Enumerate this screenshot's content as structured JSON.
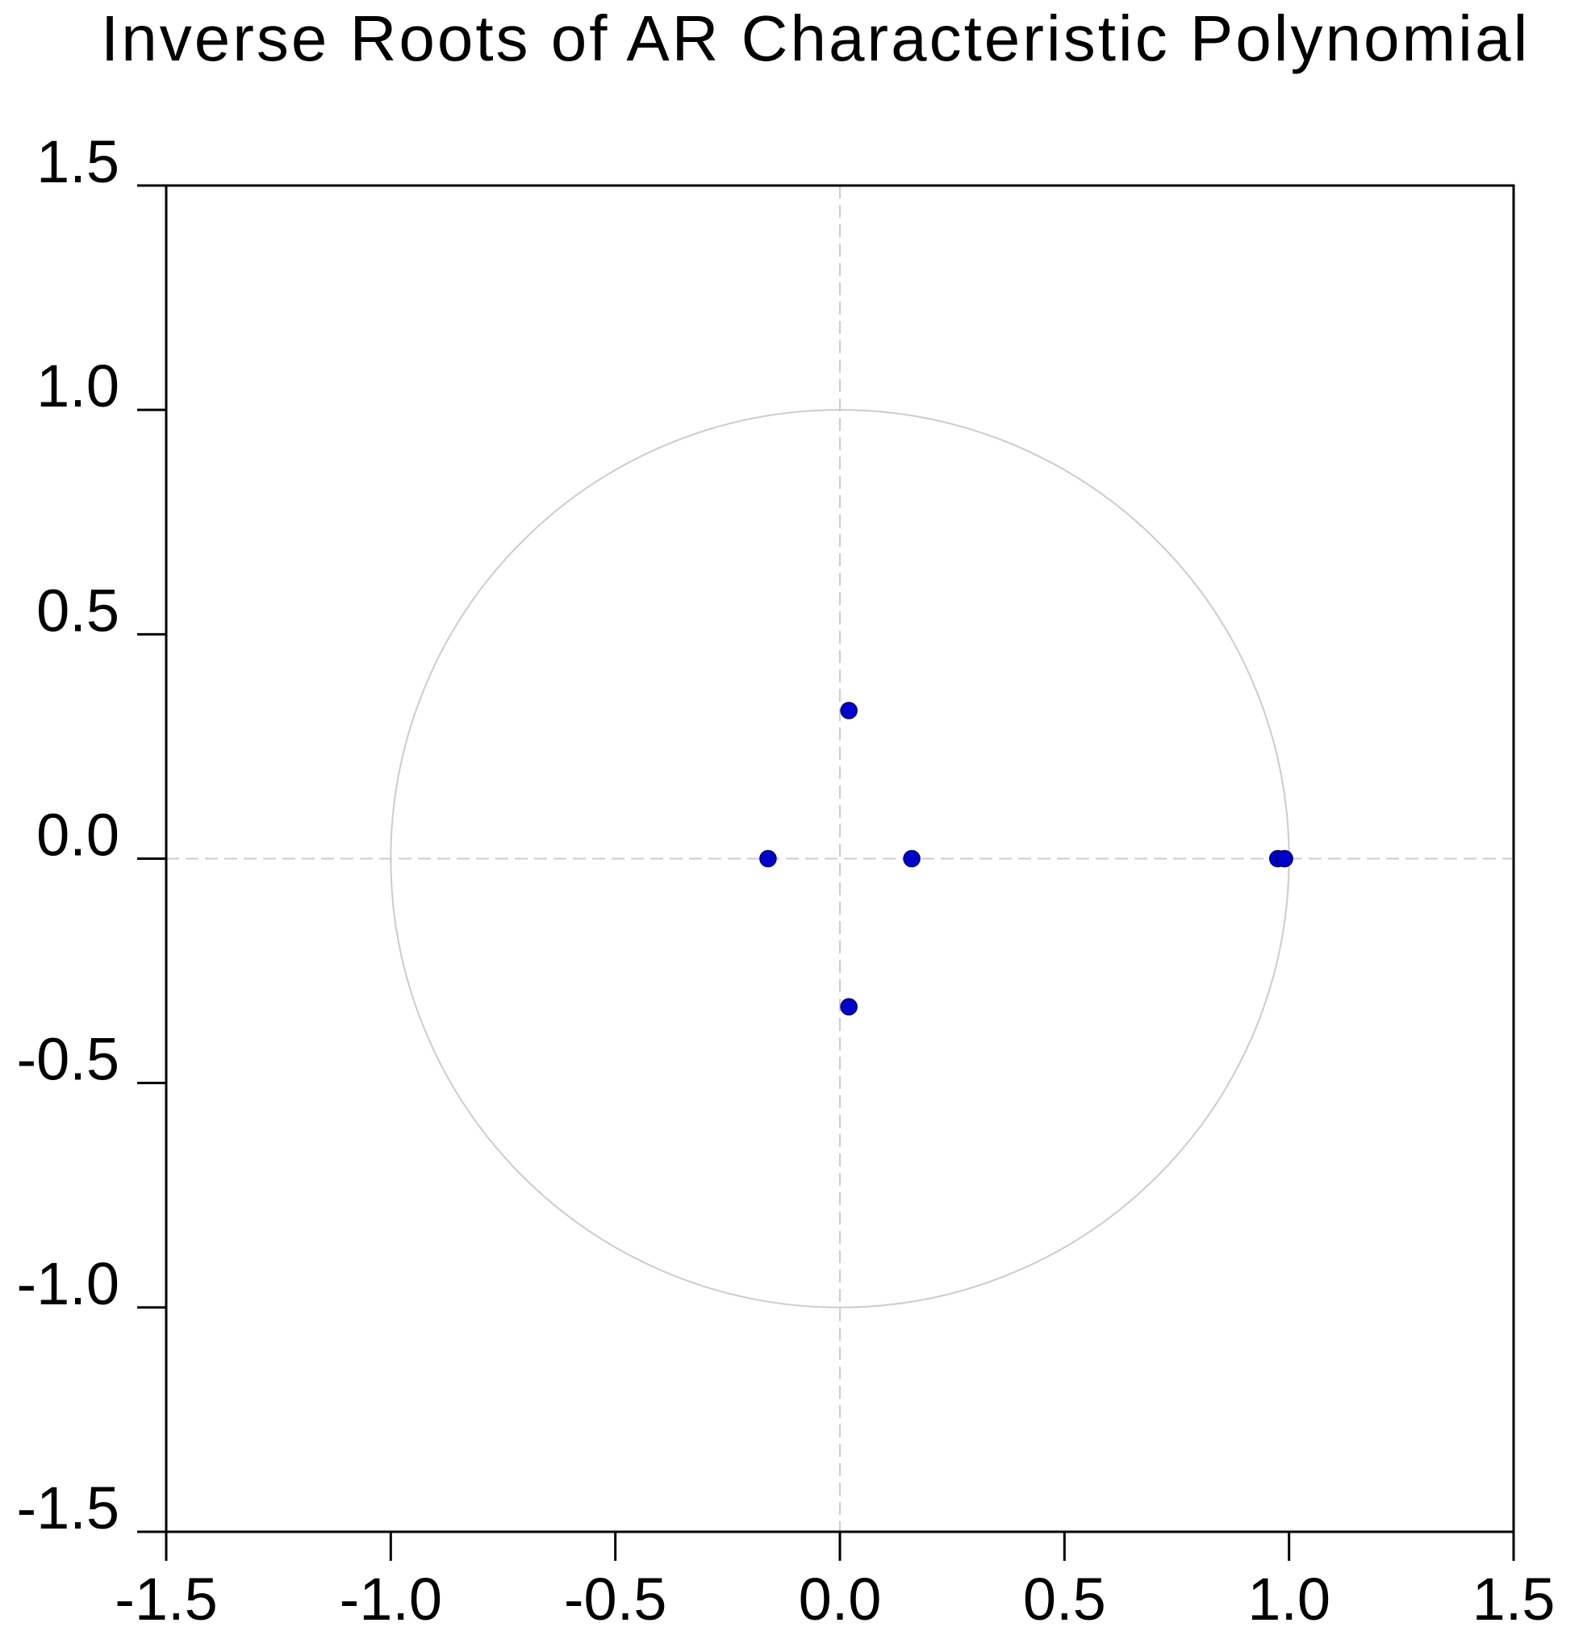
{
  "chart_data": {
    "type": "scatter",
    "title": "Inverse Roots of AR Characteristic Polynomial",
    "xlabel": "",
    "ylabel": "",
    "xlim": [
      -1.5,
      1.5
    ],
    "ylim": [
      -1.5,
      1.5
    ],
    "x_ticks": [
      "-1.5",
      "-1.0",
      "-0.5",
      "0.0",
      "0.5",
      "1.0",
      "1.5"
    ],
    "y_ticks": [
      "1.5",
      "1.0",
      "0.5",
      "0.0",
      "-0.5",
      "-1.0",
      "-1.5"
    ],
    "x_tick_values": [
      -1.5,
      -1.0,
      -0.5,
      0.0,
      0.5,
      1.0,
      1.5
    ],
    "y_tick_values": [
      1.5,
      1.0,
      0.5,
      0.0,
      -0.5,
      -1.0,
      -1.5
    ],
    "unit_circle": {
      "radius": 1.0,
      "color": "#cccccc"
    },
    "zero_lines": {
      "style": "dashed",
      "color": "#cccccc"
    },
    "grid": false,
    "marker_color": "#0000cc",
    "points": [
      {
        "x": 0.02,
        "y": 0.33
      },
      {
        "x": 0.02,
        "y": -0.33
      },
      {
        "x": -0.16,
        "y": 0.0
      },
      {
        "x": 0.16,
        "y": 0.0
      },
      {
        "x": 0.975,
        "y": 0.0
      },
      {
        "x": 0.99,
        "y": 0.0
      }
    ]
  }
}
